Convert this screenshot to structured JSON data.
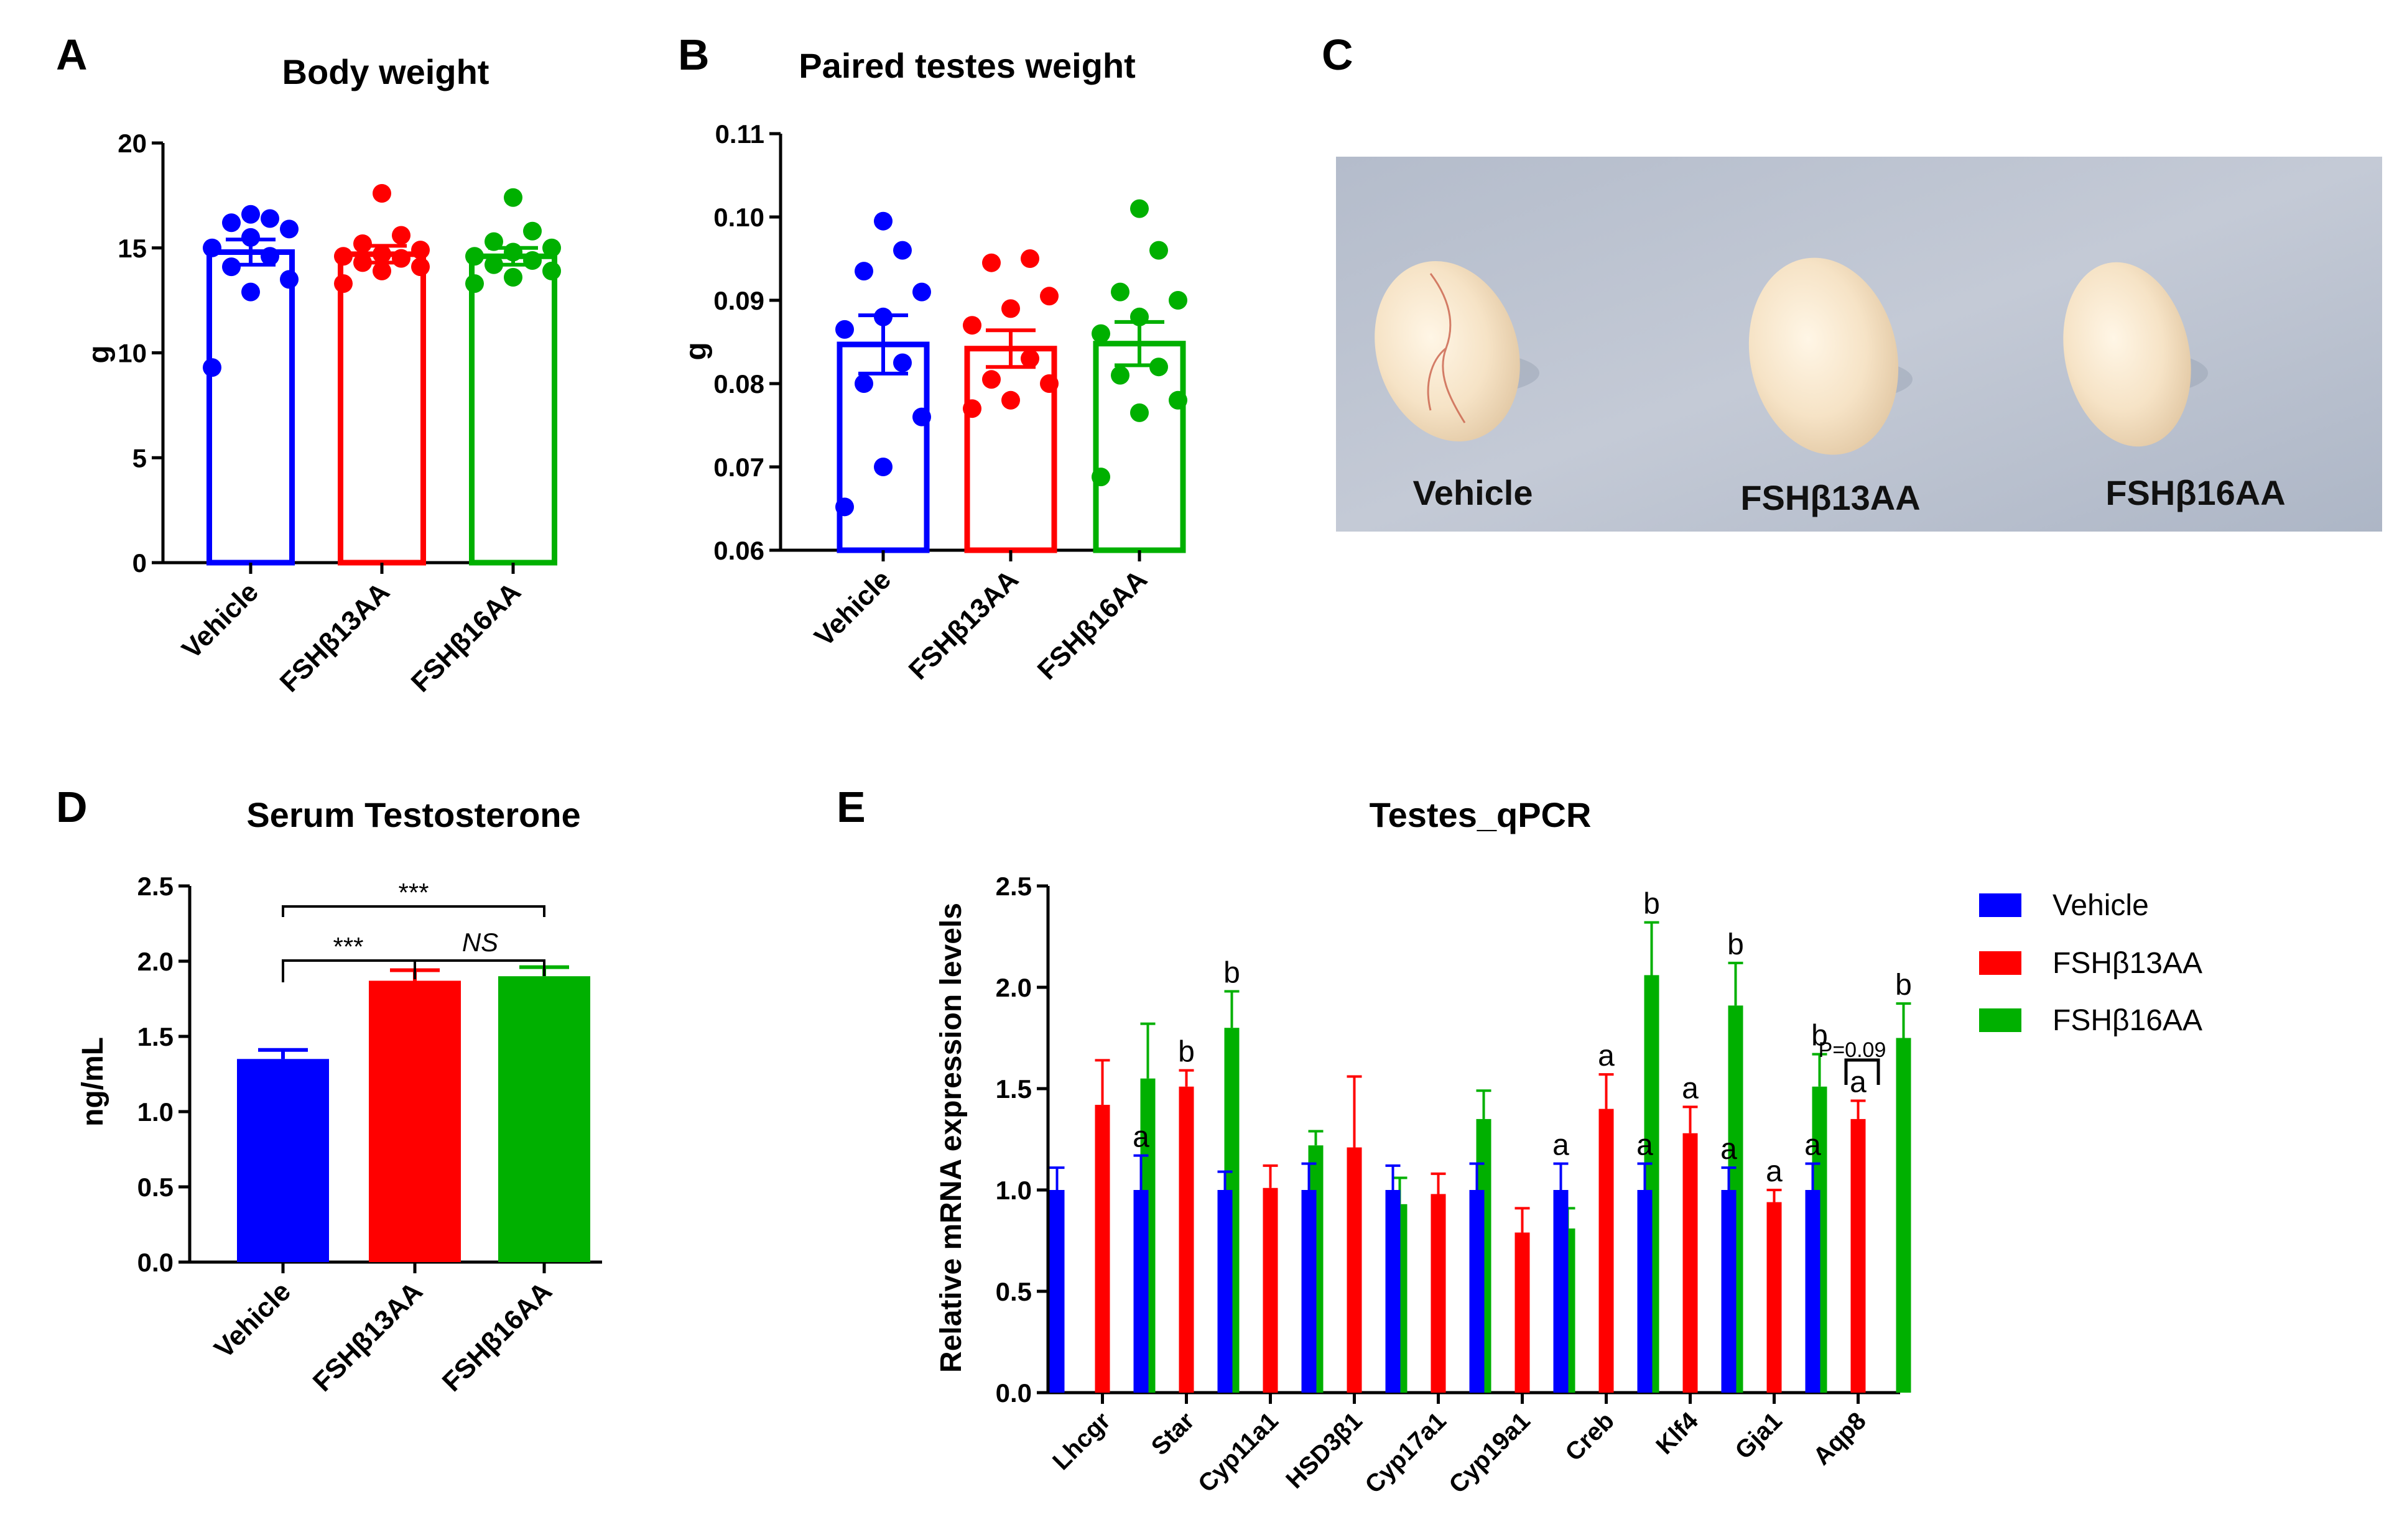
{
  "colors": {
    "vehicle": "#0000ff",
    "fsh13": "#ff0000",
    "fsh16": "#00b000",
    "axis": "#000000"
  },
  "charts": {
    "A": {
      "panel_label": "A",
      "type": "bar",
      "title": "Body weight",
      "ylabel": "g",
      "ylim": [
        0,
        20
      ],
      "yticks": [
        "0",
        "5",
        "10",
        "15",
        "20"
      ],
      "categories": [
        "Vehicle",
        "FSHβ13AA",
        "FSHβ16AA"
      ],
      "means": [
        14.8,
        14.7,
        14.6
      ],
      "sem": [
        0.6,
        0.4,
        0.4
      ],
      "points": [
        [
          9.3,
          12.9,
          13.5,
          14.1,
          14.6,
          15.0,
          15.5,
          15.9,
          16.2,
          16.4,
          16.6
        ],
        [
          13.3,
          13.9,
          14.1,
          14.3,
          14.5,
          14.6,
          14.7,
          14.9,
          15.2,
          15.6,
          17.6
        ],
        [
          13.3,
          13.6,
          13.9,
          14.2,
          14.4,
          14.6,
          14.8,
          15.0,
          15.3,
          15.8,
          17.4
        ]
      ]
    },
    "B": {
      "panel_label": "B",
      "type": "bar",
      "title": "Paired testes weight",
      "ylabel": "g",
      "ylim": [
        0.06,
        0.11
      ],
      "yticks": [
        "0.06",
        "0.07",
        "0.08",
        "0.09",
        "0.10",
        "0.11"
      ],
      "categories": [
        "Vehicle",
        "FSHβ13AA",
        "FSHβ16AA"
      ],
      "means": [
        0.0847,
        0.0842,
        0.0848
      ],
      "sem": [
        0.0035,
        0.0022,
        0.0026
      ],
      "points": [
        [
          0.0652,
          0.07,
          0.076,
          0.08,
          0.0825,
          0.0865,
          0.088,
          0.091,
          0.0935,
          0.096,
          0.0995
        ],
        [
          0.077,
          0.078,
          0.08,
          0.0805,
          0.083,
          0.087,
          0.089,
          0.0905,
          0.0945,
          0.095
        ],
        [
          0.0688,
          0.0765,
          0.078,
          0.081,
          0.082,
          0.086,
          0.088,
          0.09,
          0.091,
          0.096,
          0.101
        ]
      ]
    },
    "C": {
      "panel_label": "C",
      "labels": [
        "Vehicle",
        "FSHβ13AA",
        "FSHβ16AA"
      ]
    },
    "D": {
      "panel_label": "D",
      "type": "bar",
      "title": "Serum Testosterone",
      "ylabel": "ng/mL",
      "ylim": [
        0,
        2.5
      ],
      "yticks": [
        "0.0",
        "0.5",
        "1.0",
        "1.5",
        "2.0",
        "2.5"
      ],
      "categories": [
        "Vehicle",
        "FSHβ13AA",
        "FSHβ16AA"
      ],
      "means": [
        1.35,
        1.87,
        1.9
      ],
      "sem": [
        0.06,
        0.07,
        0.06
      ],
      "sig": [
        "***",
        "***",
        "NS"
      ]
    },
    "E": {
      "panel_label": "E",
      "type": "bar",
      "title": "Testes_qPCR",
      "ylabel": "Relative mRNA expression levels",
      "ylim": [
        0,
        2.5
      ],
      "yticks": [
        "0.0",
        "0.5",
        "1.0",
        "1.5",
        "2.0",
        "2.5"
      ],
      "categories": [
        "Lhcgr",
        "Star",
        "Cyp11a1",
        "HSD3β1",
        "Cyp17a1",
        "Cyp19a1",
        "Creb",
        "Klf4",
        "Gja1",
        "Aqp8"
      ],
      "series": [
        {
          "name": "Vehicle",
          "values": [
            1.0,
            1.0,
            1.0,
            1.0,
            1.0,
            1.0,
            1.0,
            1.0,
            1.0,
            1.0
          ],
          "errors": [
            0.11,
            0.17,
            0.09,
            0.13,
            0.12,
            0.13,
            0.13,
            0.13,
            0.11,
            0.13
          ],
          "letters": [
            "",
            "a",
            "",
            "",
            "",
            "",
            "a",
            "a",
            "a",
            "a"
          ]
        },
        {
          "name": "FSHβ13AA",
          "values": [
            1.42,
            1.51,
            1.01,
            1.21,
            0.98,
            0.79,
            1.4,
            1.28,
            0.94,
            1.35
          ],
          "errors": [
            0.22,
            0.08,
            0.11,
            0.35,
            0.1,
            0.12,
            0.17,
            0.13,
            0.06,
            0.09
          ],
          "letters": [
            "",
            "b",
            "",
            "",
            "",
            "",
            "a",
            "a",
            "a",
            "a"
          ]
        },
        {
          "name": "FSHβ16AA",
          "values": [
            1.55,
            1.8,
            1.22,
            0.93,
            1.35,
            0.81,
            2.06,
            1.91,
            1.51,
            1.75
          ],
          "errors": [
            0.27,
            0.18,
            0.07,
            0.13,
            0.14,
            0.1,
            0.26,
            0.21,
            0.16,
            0.17
          ],
          "letters": [
            "",
            "b",
            "",
            "",
            "",
            "",
            "b",
            "b",
            "b",
            "b"
          ]
        }
      ],
      "pvalue_label": "P=0.09"
    }
  }
}
